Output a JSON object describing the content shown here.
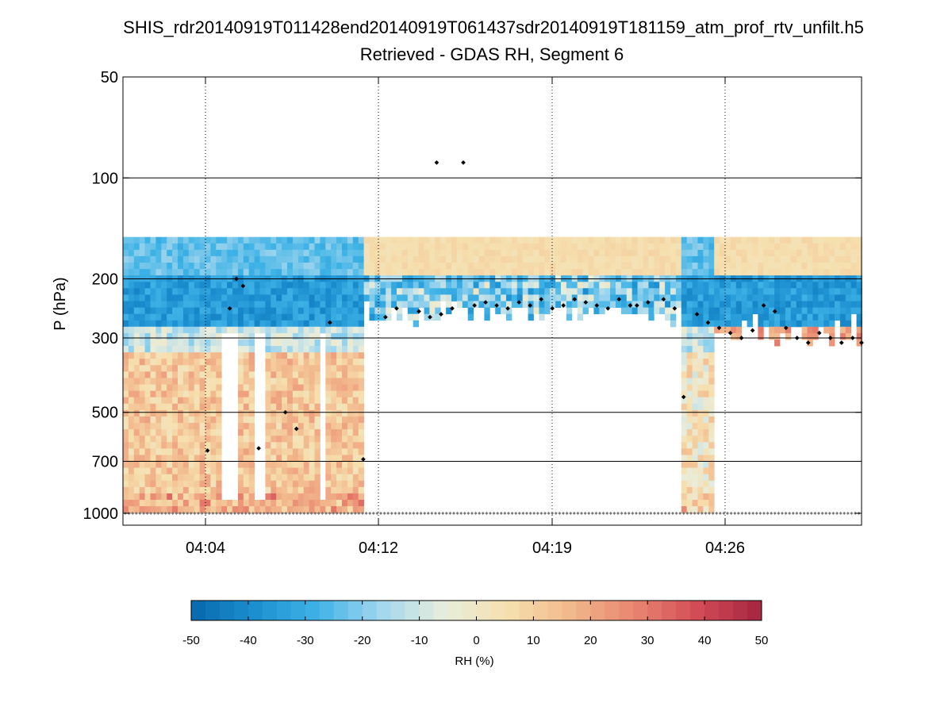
{
  "chart_data": {
    "type": "heatmap",
    "title": "SHIS_rdr20140919T011428end20140919T061437sdr20140919T181159_atm_prof_rtv_unfilt.h5",
    "subtitle": "Retrieved - GDAS RH, Segment 6",
    "ylabel": "P (hPa)",
    "y_scale": "log",
    "y_direction": "reversed",
    "ylim": [
      50,
      1050
    ],
    "y_ticks": [
      50,
      100,
      200,
      300,
      500,
      700,
      1000
    ],
    "y_tick_labels": [
      "50",
      "100",
      "200",
      "300",
      "500",
      "700",
      "1000"
    ],
    "x_ticks_min": [
      4.0667,
      4.2,
      4.3167,
      4.4333
    ],
    "xlim_min": [
      0,
      25.5
    ],
    "x_start_min": 1.2,
    "x_tick_positions_min": [
      2.87,
      8.83,
      14.8,
      20.77
    ],
    "x_tick_labels": [
      "04:04",
      "04:12",
      "04:19",
      "04:26"
    ],
    "grid": {
      "x": "dotted",
      "y_major": "solid"
    },
    "colorbar": {
      "label": "RH (%)",
      "range": [
        -50,
        50
      ],
      "ticks": [
        -50,
        -40,
        -30,
        -20,
        -10,
        0,
        10,
        20,
        30,
        40,
        50
      ],
      "tick_labels": [
        "-50",
        "-40",
        "-30",
        "-20",
        "-10",
        "0",
        "10",
        "20",
        "30",
        "40",
        "50"
      ],
      "colors": [
        "#0868ac",
        "#1b8fd0",
        "#3fb3e6",
        "#a3d7ee",
        "#e8eddc",
        "#f6dfae",
        "#f2b88c",
        "#e98570",
        "#d14b56",
        "#a52540"
      ],
      "placement": "bottom"
    },
    "cloud_top_markers_hPa": [
      [
        5.0,
        650
      ],
      [
        6.0,
        245
      ],
      [
        6.3,
        200
      ],
      [
        6.6,
        210
      ],
      [
        7.3,
        640
      ],
      [
        8.5,
        500
      ],
      [
        9.0,
        560
      ],
      [
        10.5,
        270
      ],
      [
        12.0,
        690
      ],
      [
        13.0,
        260
      ],
      [
        13.5,
        245
      ],
      [
        14.5,
        250
      ],
      [
        15.0,
        260
      ],
      [
        15.3,
        90
      ],
      [
        15.5,
        255
      ],
      [
        16.0,
        245
      ],
      [
        16.5,
        90
      ],
      [
        17.0,
        240
      ],
      [
        17.5,
        235
      ],
      [
        18.0,
        240
      ],
      [
        18.5,
        245
      ],
      [
        19.0,
        235
      ],
      [
        19.5,
        240
      ],
      [
        20.0,
        230
      ],
      [
        20.5,
        245
      ],
      [
        21.0,
        240
      ],
      [
        21.5,
        230
      ],
      [
        22.0,
        235
      ],
      [
        22.5,
        240
      ],
      [
        23.0,
        245
      ],
      [
        23.5,
        230
      ],
      [
        24.0,
        240
      ],
      [
        24.3,
        240
      ],
      [
        24.8,
        235
      ],
      [
        25.5,
        230
      ],
      [
        26.0,
        245
      ],
      [
        26.4,
        450
      ],
      [
        27.0,
        255
      ],
      [
        27.5,
        270
      ],
      [
        28.0,
        280
      ],
      [
        28.5,
        290
      ],
      [
        29.0,
        300
      ],
      [
        29.5,
        285
      ],
      [
        30.0,
        240
      ],
      [
        30.5,
        250
      ],
      [
        31.0,
        280
      ],
      [
        31.5,
        300
      ],
      [
        32.0,
        310
      ],
      [
        32.5,
        290
      ],
      [
        33.0,
        300
      ],
      [
        33.5,
        310
      ],
      [
        34.0,
        300
      ],
      [
        34.4,
        310
      ]
    ],
    "surface_markers_hPa": 1000
  }
}
